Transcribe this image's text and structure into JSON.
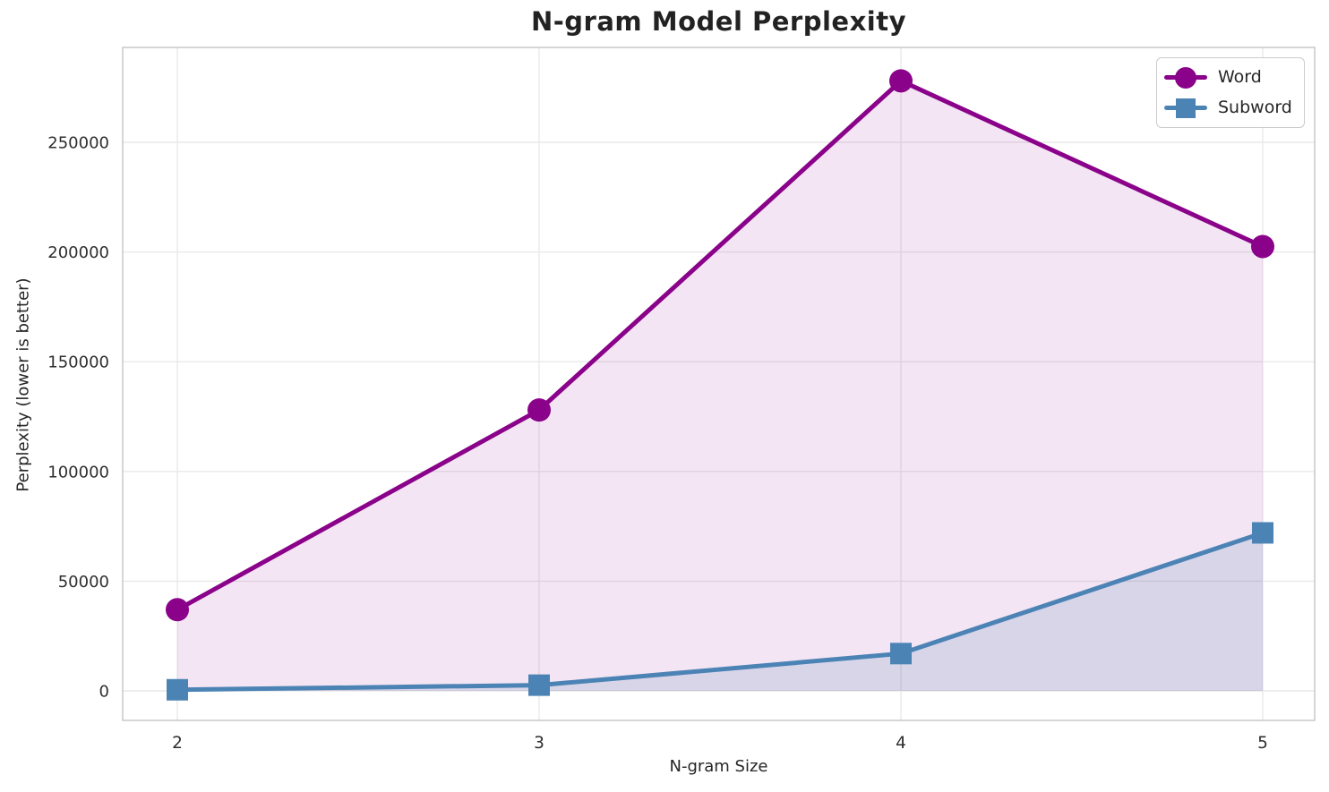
{
  "chart_data": {
    "type": "line",
    "title": "N-gram Model Perplexity",
    "xlabel": "N-gram Size",
    "ylabel": "Perplexity (lower is better)",
    "x": [
      2,
      3,
      4,
      5
    ],
    "x_tick_labels": [
      "2",
      "3",
      "4",
      "5"
    ],
    "y_ticks": [
      0,
      50000,
      100000,
      150000,
      200000,
      250000
    ],
    "y_tick_labels": [
      "0",
      "50000",
      "100000",
      "150000",
      "200000",
      "250000"
    ],
    "ylim": [
      0,
      278000
    ],
    "grid": true,
    "legend_position": "upper right",
    "area_fill_baseline": 0,
    "series": [
      {
        "name": "Word",
        "marker": "circle",
        "color": "#8A018A",
        "fill_alpha": 0.1,
        "values": [
          37000,
          128000,
          278000,
          202500
        ]
      },
      {
        "name": "Subword",
        "marker": "square",
        "color": "#4C83B5",
        "fill_alpha": 0.16,
        "values": [
          500,
          2600,
          17000,
          72000
        ]
      }
    ]
  }
}
